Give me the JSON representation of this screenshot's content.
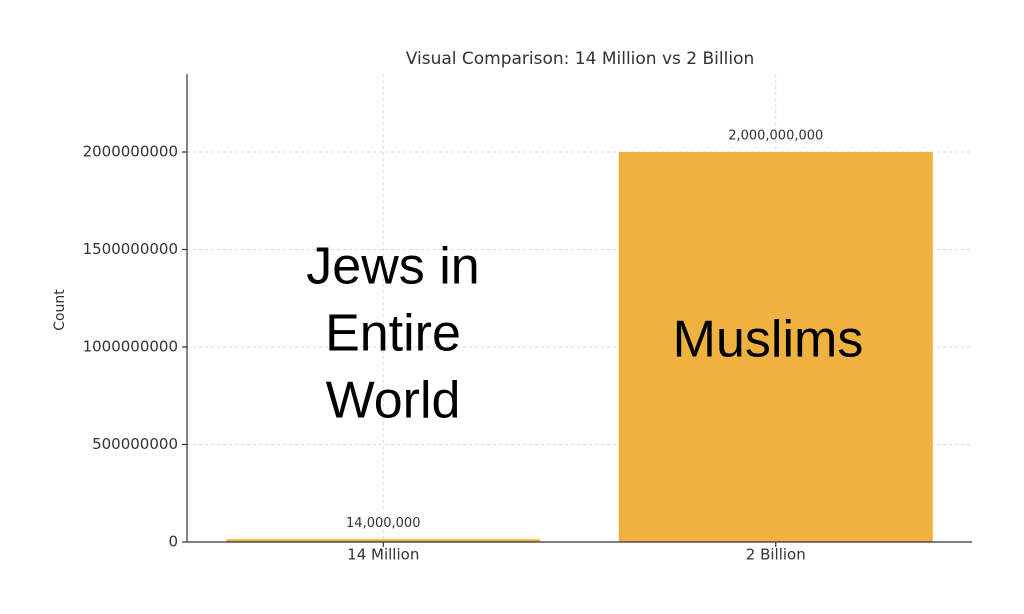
{
  "chart_data": {
    "type": "bar",
    "title": "Visual Comparison: 14 Million vs 2 Billion",
    "ylabel": "Count",
    "categories": [
      "14 Million",
      "2 Billion"
    ],
    "values": [
      14000000,
      2000000000
    ],
    "value_labels": [
      "14,000,000",
      "2,000,000,000"
    ],
    "color": "#efb13f",
    "ylim": [
      0,
      2400000000
    ],
    "yticks": [
      0,
      500000000,
      1000000000,
      1500000000,
      2000000000
    ],
    "grid": true,
    "annotations": [
      {
        "lines": [
          "Jews in",
          "Entire",
          "World"
        ]
      },
      {
        "lines": [
          "Muslims"
        ]
      }
    ]
  }
}
